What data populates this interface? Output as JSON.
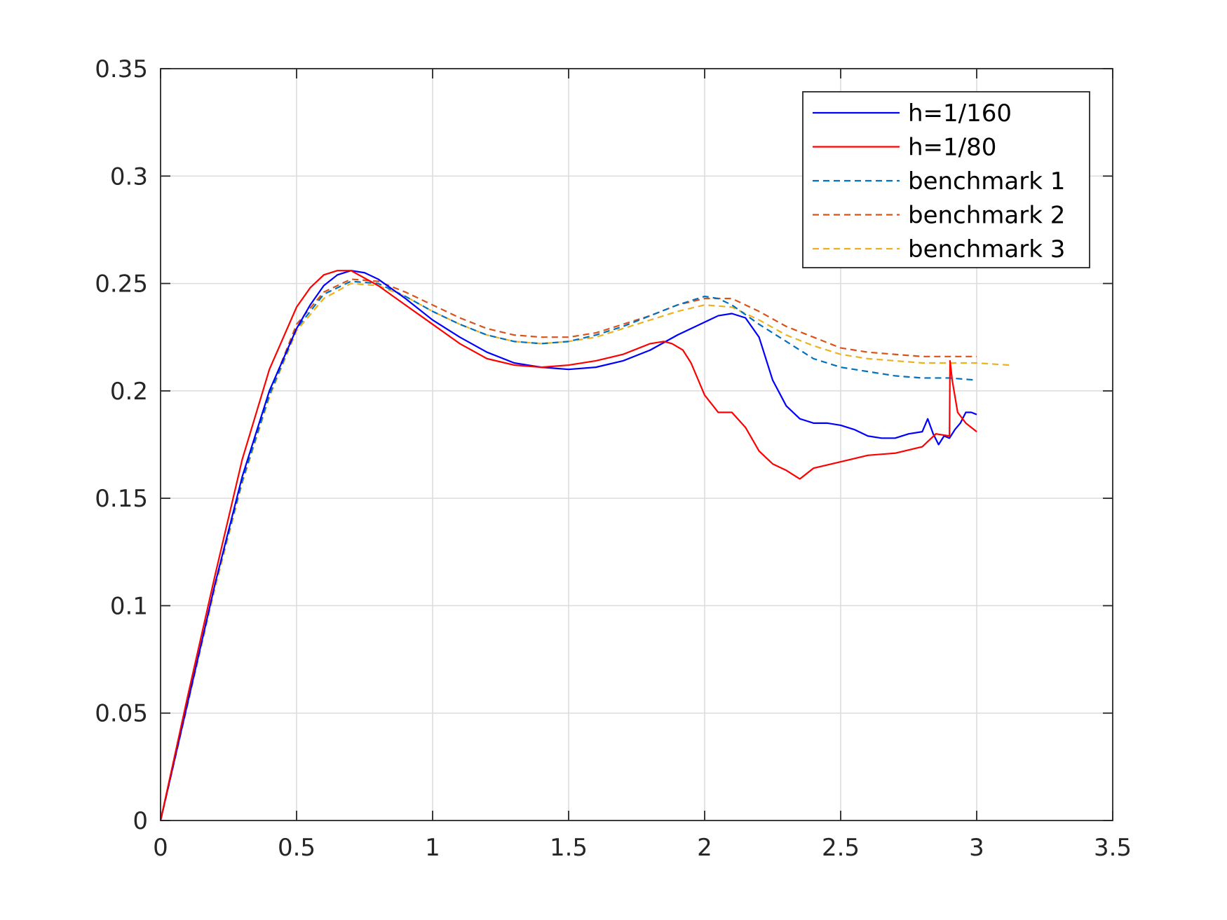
{
  "chart_data": {
    "type": "line",
    "title": "",
    "xlabel": "",
    "ylabel": "",
    "xlim": [
      0,
      3.5
    ],
    "ylim": [
      0,
      0.35
    ],
    "grid": true,
    "legend_position": "top-right",
    "x_ticks": [
      0,
      0.5,
      1,
      1.5,
      2,
      2.5,
      3,
      3.5
    ],
    "x_tick_labels": [
      "0",
      "0.5",
      "1",
      "1.5",
      "2",
      "2.5",
      "3",
      "3.5"
    ],
    "y_ticks": [
      0,
      0.05,
      0.1,
      0.15,
      0.2,
      0.25,
      0.3,
      0.35
    ],
    "y_tick_labels": [
      "0",
      "0.05",
      "0.1",
      "0.15",
      "0.2",
      "0.25",
      "0.3",
      "0.35"
    ],
    "series": [
      {
        "name": "h=1/160",
        "color": "#0000ff",
        "style": "solid",
        "x": [
          0,
          0.1,
          0.2,
          0.3,
          0.4,
          0.5,
          0.55,
          0.6,
          0.65,
          0.7,
          0.75,
          0.8,
          0.9,
          1.0,
          1.1,
          1.2,
          1.3,
          1.4,
          1.5,
          1.6,
          1.7,
          1.8,
          1.9,
          2.0,
          2.05,
          2.1,
          2.15,
          2.2,
          2.25,
          2.3,
          2.35,
          2.4,
          2.45,
          2.5,
          2.55,
          2.6,
          2.65,
          2.7,
          2.75,
          2.8,
          2.82,
          2.84,
          2.86,
          2.88,
          2.9,
          2.92,
          2.94,
          2.96,
          2.98,
          3.0
        ],
        "y": [
          0,
          0.055,
          0.11,
          0.16,
          0.2,
          0.229,
          0.24,
          0.249,
          0.254,
          0.256,
          0.255,
          0.252,
          0.243,
          0.233,
          0.225,
          0.218,
          0.213,
          0.211,
          0.21,
          0.211,
          0.214,
          0.219,
          0.226,
          0.232,
          0.235,
          0.236,
          0.234,
          0.225,
          0.205,
          0.193,
          0.187,
          0.185,
          0.185,
          0.184,
          0.182,
          0.179,
          0.178,
          0.178,
          0.18,
          0.181,
          0.187,
          0.18,
          0.175,
          0.179,
          0.178,
          0.182,
          0.185,
          0.19,
          0.19,
          0.189
        ]
      },
      {
        "name": "h=1/80",
        "color": "#ff0000",
        "style": "solid",
        "x": [
          0,
          0.1,
          0.2,
          0.3,
          0.4,
          0.5,
          0.55,
          0.6,
          0.65,
          0.7,
          0.8,
          0.9,
          1.0,
          1.1,
          1.2,
          1.3,
          1.4,
          1.5,
          1.6,
          1.7,
          1.8,
          1.85,
          1.88,
          1.92,
          1.95,
          2.0,
          2.05,
          2.1,
          2.15,
          2.2,
          2.25,
          2.3,
          2.35,
          2.4,
          2.5,
          2.6,
          2.7,
          2.8,
          2.85,
          2.9,
          2.902,
          2.91,
          2.93,
          2.96,
          3.0
        ],
        "y": [
          0,
          0.058,
          0.114,
          0.168,
          0.21,
          0.239,
          0.248,
          0.254,
          0.256,
          0.256,
          0.249,
          0.24,
          0.231,
          0.222,
          0.215,
          0.212,
          0.211,
          0.212,
          0.214,
          0.217,
          0.222,
          0.223,
          0.222,
          0.219,
          0.213,
          0.198,
          0.19,
          0.19,
          0.183,
          0.172,
          0.166,
          0.163,
          0.159,
          0.164,
          0.167,
          0.17,
          0.171,
          0.174,
          0.18,
          0.179,
          0.214,
          0.205,
          0.19,
          0.185,
          0.181
        ]
      },
      {
        "name": "benchmark 1",
        "color": "#0072bd",
        "style": "dashed",
        "x": [
          0,
          0.1,
          0.2,
          0.3,
          0.4,
          0.5,
          0.6,
          0.7,
          0.8,
          0.9,
          1.0,
          1.1,
          1.2,
          1.3,
          1.4,
          1.5,
          1.6,
          1.7,
          1.8,
          1.9,
          2.0,
          2.05,
          2.1,
          2.2,
          2.3,
          2.4,
          2.5,
          2.6,
          2.7,
          2.8,
          2.9,
          3.0
        ],
        "y": [
          0,
          0.055,
          0.11,
          0.158,
          0.198,
          0.229,
          0.245,
          0.251,
          0.25,
          0.244,
          0.237,
          0.231,
          0.226,
          0.223,
          0.222,
          0.223,
          0.226,
          0.23,
          0.235,
          0.24,
          0.244,
          0.243,
          0.24,
          0.231,
          0.223,
          0.215,
          0.211,
          0.209,
          0.207,
          0.206,
          0.206,
          0.205
        ]
      },
      {
        "name": "benchmark 2",
        "color": "#d95319",
        "style": "dashed",
        "x": [
          0,
          0.1,
          0.2,
          0.3,
          0.4,
          0.5,
          0.6,
          0.7,
          0.8,
          0.9,
          1.0,
          1.1,
          1.2,
          1.3,
          1.4,
          1.5,
          1.6,
          1.7,
          1.8,
          1.9,
          2.0,
          2.1,
          2.2,
          2.3,
          2.4,
          2.5,
          2.6,
          2.7,
          2.8,
          2.9,
          3.0
        ],
        "y": [
          0,
          0.055,
          0.11,
          0.158,
          0.199,
          0.231,
          0.246,
          0.252,
          0.251,
          0.246,
          0.24,
          0.234,
          0.229,
          0.226,
          0.225,
          0.225,
          0.227,
          0.231,
          0.235,
          0.24,
          0.243,
          0.243,
          0.237,
          0.23,
          0.225,
          0.22,
          0.218,
          0.217,
          0.216,
          0.216,
          0.216
        ]
      },
      {
        "name": "benchmark 3",
        "color": "#edb120",
        "style": "dashed",
        "x": [
          0,
          0.1,
          0.2,
          0.3,
          0.4,
          0.5,
          0.6,
          0.7,
          0.8,
          0.9,
          1.0,
          1.1,
          1.2,
          1.3,
          1.4,
          1.5,
          1.6,
          1.7,
          1.8,
          1.9,
          2.0,
          2.1,
          2.2,
          2.3,
          2.4,
          2.5,
          2.6,
          2.7,
          2.8,
          2.9,
          3.0,
          3.12
        ],
        "y": [
          0,
          0.054,
          0.108,
          0.157,
          0.197,
          0.228,
          0.243,
          0.25,
          0.249,
          0.244,
          0.237,
          0.231,
          0.226,
          0.223,
          0.222,
          0.223,
          0.225,
          0.229,
          0.233,
          0.237,
          0.24,
          0.239,
          0.233,
          0.226,
          0.221,
          0.217,
          0.215,
          0.214,
          0.213,
          0.213,
          0.213,
          0.212
        ]
      }
    ]
  }
}
